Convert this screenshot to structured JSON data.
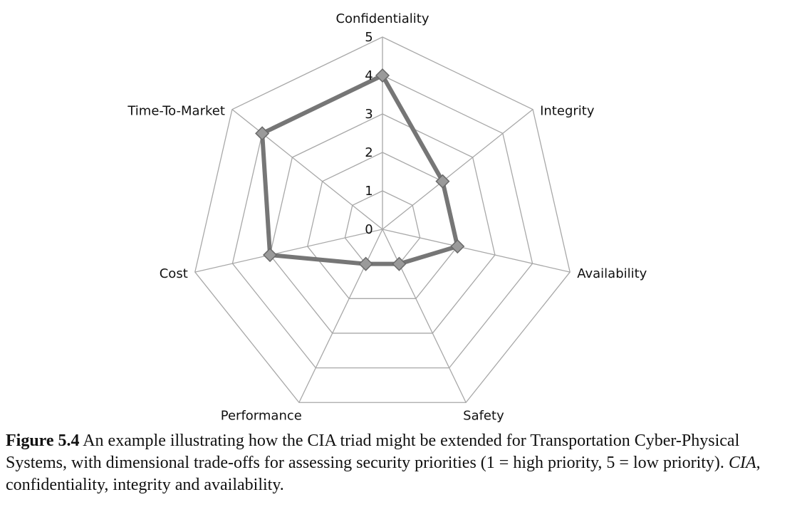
{
  "chart_data": {
    "type": "radar",
    "axes": [
      "Confidentiality",
      "Integrity",
      "Availability",
      "Safety",
      "Performance",
      "Cost",
      "Time-To-Market"
    ],
    "values": [
      4,
      2,
      2,
      1,
      1,
      3,
      4
    ],
    "range": [
      0,
      5
    ],
    "ticks": [
      "0",
      "1",
      "2",
      "3",
      "4",
      "5"
    ],
    "grid": true,
    "colors": {
      "series": "#767676",
      "marker": "#9a9a9a",
      "grid": "#a8a8a8"
    }
  },
  "caption": {
    "label": "Figure 5.4",
    "text_part1": " An example illustrating how the CIA triad might be extended for Transportation Cyber-Physical Systems, with dimensional trade-offs for assessing security priorities (1 = high priority, 5 = low priority). ",
    "abbr": "CIA",
    "text_part2": ", confidentiality, integrity and availability."
  }
}
